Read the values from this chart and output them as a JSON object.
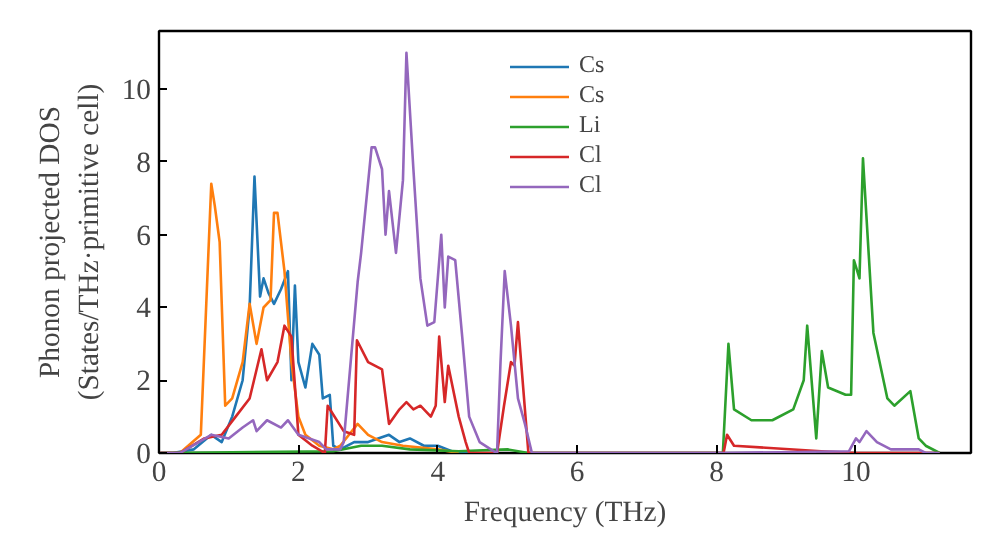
{
  "chart_data": {
    "type": "line",
    "xlabel": "Frequency (THz)",
    "ylabel": "Phonon projected DOS\n(States/THz·primitive cell)",
    "xlim": [
      0,
      11.65
    ],
    "ylim": [
      0,
      11.6
    ],
    "xticks": [
      0,
      2,
      4,
      6,
      8,
      10
    ],
    "yticks": [
      0,
      2,
      4,
      6,
      8,
      10
    ],
    "grid": false,
    "legend": "top",
    "line_style": "solid",
    "series": [
      {
        "name": "Cs",
        "color": "#1f77b4",
        "x": [
          0,
          0.2,
          0.5,
          0.75,
          0.9,
          1.05,
          1.2,
          1.3,
          1.37,
          1.45,
          1.5,
          1.57,
          1.65,
          1.75,
          1.85,
          1.9,
          1.95,
          2.0,
          2.1,
          2.2,
          2.3,
          2.35,
          2.45,
          2.5,
          2.6,
          2.8,
          3.0,
          3.3,
          3.45,
          3.6,
          3.8,
          4.0,
          4.2,
          4.5
        ],
        "values": [
          0,
          0,
          0.1,
          0.5,
          0.3,
          1.0,
          2.0,
          4.0,
          7.6,
          4.3,
          4.8,
          4.4,
          4.1,
          4.5,
          5.0,
          2.0,
          4.6,
          2.5,
          1.8,
          3.0,
          2.7,
          1.5,
          1.6,
          0.2,
          0.1,
          0.3,
          0.3,
          0.5,
          0.3,
          0.4,
          0.2,
          0.2,
          0.05,
          0
        ]
      },
      {
        "name": "Cs",
        "color": "#ff7f0e",
        "x": [
          0,
          0.3,
          0.6,
          0.75,
          0.8,
          0.87,
          0.95,
          1.05,
          1.2,
          1.3,
          1.4,
          1.5,
          1.6,
          1.65,
          1.7,
          1.8,
          1.9,
          2.0,
          2.1,
          2.3,
          2.5,
          2.6,
          2.85,
          3.0,
          3.2,
          3.5,
          4.0,
          4.3
        ],
        "values": [
          0,
          0,
          0.5,
          7.4,
          6.8,
          5.8,
          1.3,
          1.5,
          2.5,
          4.1,
          3.0,
          4.0,
          4.2,
          6.6,
          6.6,
          5.0,
          2.5,
          1.0,
          0.5,
          0.2,
          0.1,
          0.2,
          0.8,
          0.5,
          0.3,
          0.2,
          0.1,
          0
        ]
      },
      {
        "name": "Li",
        "color": "#2ca02c",
        "x": [
          0,
          2.5,
          2.9,
          3.2,
          3.6,
          4.3,
          5.0,
          5.3,
          8.09,
          8.17,
          8.25,
          8.5,
          8.8,
          9.1,
          9.25,
          9.3,
          9.43,
          9.51,
          9.6,
          9.85,
          9.93,
          9.97,
          10.05,
          10.1,
          10.25,
          10.45,
          10.55,
          10.78,
          10.9,
          11.0,
          11.2
        ],
        "values": [
          0,
          0.05,
          0.2,
          0.2,
          0.1,
          0.05,
          0.1,
          0,
          0,
          3.0,
          1.2,
          0.9,
          0.9,
          1.2,
          2.0,
          3.5,
          0.4,
          2.8,
          1.8,
          1.6,
          1.6,
          5.3,
          4.8,
          8.1,
          3.3,
          1.5,
          1.3,
          1.7,
          0.4,
          0.2,
          0
        ]
      },
      {
        "name": "Cl",
        "color": "#d62728",
        "x": [
          0,
          0.3,
          0.65,
          0.9,
          1.1,
          1.3,
          1.47,
          1.55,
          1.7,
          1.8,
          1.9,
          2.0,
          2.2,
          2.38,
          2.42,
          2.65,
          2.8,
          2.84,
          3.0,
          3.2,
          3.3,
          3.45,
          3.55,
          3.65,
          3.75,
          3.9,
          3.97,
          4.02,
          4.1,
          4.15,
          4.3,
          4.4,
          4.45,
          4.85,
          4.95,
          5.05,
          5.1,
          5.15,
          5.3,
          8.1,
          8.15,
          8.25,
          9.5,
          10.0,
          11.2
        ],
        "values": [
          0,
          0,
          0.4,
          0.5,
          1.0,
          1.5,
          2.85,
          2.0,
          2.5,
          3.5,
          3.2,
          0.5,
          0.2,
          0,
          1.3,
          0.6,
          0.5,
          3.1,
          2.5,
          2.3,
          0.8,
          1.2,
          1.4,
          1.2,
          1.3,
          1.0,
          1.3,
          3.2,
          1.4,
          2.4,
          1.0,
          0.3,
          0,
          0,
          1.3,
          2.5,
          2.4,
          3.6,
          0,
          0,
          0.5,
          0.2,
          0.05,
          0,
          0
        ]
      },
      {
        "name": "Cl",
        "color": "#9467bd",
        "x": [
          0,
          0.3,
          0.75,
          1.0,
          1.2,
          1.35,
          1.4,
          1.55,
          1.75,
          1.85,
          2.0,
          2.3,
          2.4,
          2.6,
          2.65,
          2.85,
          2.9,
          3.05,
          3.1,
          3.2,
          3.25,
          3.3,
          3.4,
          3.5,
          3.55,
          3.65,
          3.75,
          3.85,
          3.95,
          4.05,
          4.1,
          4.15,
          4.25,
          4.35,
          4.45,
          4.6,
          4.8,
          4.85,
          4.9,
          4.96,
          5.05,
          5.15,
          5.25,
          5.35,
          8.1,
          9.9,
          10.0,
          10.05,
          10.15,
          10.3,
          10.5,
          10.9,
          11.0,
          11.2
        ],
        "values": [
          0,
          0,
          0.5,
          0.4,
          0.7,
          0.9,
          0.6,
          0.9,
          0.7,
          0.9,
          0.5,
          0.3,
          0.1,
          0.1,
          0.3,
          4.7,
          5.5,
          8.4,
          8.4,
          7.8,
          6.0,
          7.2,
          5.5,
          7.5,
          11.0,
          7.8,
          4.8,
          3.5,
          3.6,
          6.0,
          4.0,
          5.4,
          5.3,
          3.2,
          1.0,
          0.3,
          0.05,
          0,
          2.5,
          5.0,
          3.5,
          1.5,
          0.8,
          0,
          0,
          0.05,
          0.4,
          0.3,
          0.6,
          0.3,
          0.1,
          0.1,
          0,
          0
        ]
      }
    ]
  }
}
